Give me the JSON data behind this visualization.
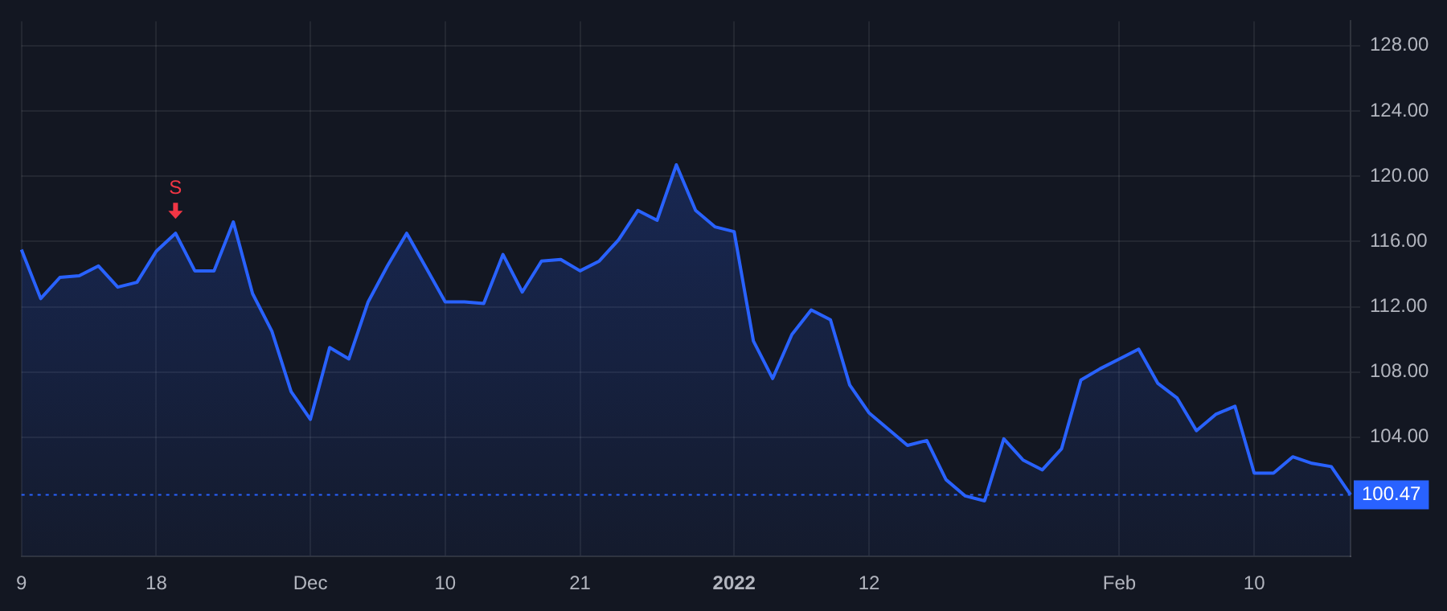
{
  "chart_data": {
    "type": "area",
    "categories": [
      "9",
      null,
      null,
      null,
      null,
      null,
      null,
      "18",
      null,
      null,
      null,
      null,
      null,
      null,
      null,
      "Dec",
      null,
      null,
      null,
      null,
      null,
      null,
      "10",
      null,
      null,
      null,
      null,
      null,
      null,
      "21",
      null,
      null,
      null,
      null,
      null,
      null,
      null,
      "2022",
      null,
      null,
      null,
      null,
      null,
      null,
      "12",
      null,
      null,
      null,
      null,
      null,
      null,
      null,
      null,
      null,
      null,
      null,
      null,
      "Feb",
      null,
      null,
      null,
      null,
      null,
      null,
      "10",
      null,
      null,
      null,
      null,
      null
    ],
    "series": [
      {
        "color": "#2962ff",
        "values": [
          115.5,
          112.5,
          113.8,
          113.9,
          114.5,
          113.2,
          113.5,
          115.4,
          116.5,
          114.2,
          114.2,
          117.2,
          112.8,
          110.5,
          106.8,
          105.1,
          109.5,
          108.8,
          112.3,
          114.5,
          116.5,
          114.4,
          112.3,
          112.3,
          112.2,
          115.2,
          112.9,
          114.8,
          114.9,
          114.2,
          114.8,
          116.1,
          117.9,
          117.3,
          120.7,
          117.9,
          116.9,
          116.6,
          109.9,
          107.6,
          110.3,
          111.8,
          111.2,
          107.2,
          105.5,
          104.5,
          103.5,
          103.8,
          101.4,
          100.4,
          100.1,
          103.9,
          102.6,
          102.0,
          103.3,
          107.5,
          108.2,
          108.8,
          109.4,
          107.3,
          106.4,
          104.4,
          105.4,
          105.9,
          101.8,
          101.8,
          102.8,
          102.4,
          102.2,
          100.47
        ]
      }
    ],
    "ylim": [
      96.7,
      129.5
    ],
    "yticks": [
      {
        "value": 104,
        "label": "104.00"
      },
      {
        "value": 108,
        "label": "108.00"
      },
      {
        "value": 112,
        "label": "112.00"
      },
      {
        "value": 116,
        "label": "116.00"
      },
      {
        "value": 120,
        "label": "120.00"
      },
      {
        "value": 124,
        "label": "124.00"
      },
      {
        "value": 128,
        "label": "128.00"
      }
    ],
    "ref_lines": [
      {
        "axis": "y",
        "value": 100.47,
        "label": "100.47",
        "color": "#2962ff",
        "line_style": "dotted"
      }
    ],
    "annotations": [
      {
        "text": "S",
        "y": 116.5
      }
    ],
    "grid": true,
    "legend": false,
    "marker": "none",
    "line_style": "solid"
  }
}
